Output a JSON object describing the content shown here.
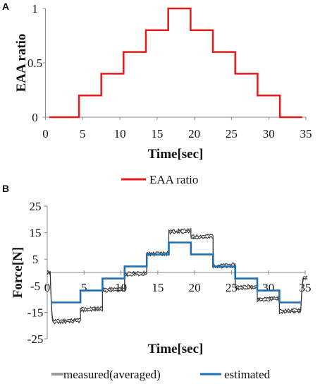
{
  "chart_data": [
    {
      "panel": "A",
      "type": "line",
      "step": true,
      "xlabel": "Time[sec]",
      "ylabel": "EAA ratio",
      "xlim": [
        0,
        35
      ],
      "ylim": [
        0,
        1
      ],
      "xticks": [
        "0",
        "5",
        "10",
        "15",
        "20",
        "25",
        "30",
        "35"
      ],
      "yticks": [
        "0",
        "0.5",
        "1"
      ],
      "grid": false,
      "legend_position": "bottom",
      "series": [
        {
          "name": "EAA ratio",
          "color": "#e41a1c",
          "x": [
            0.5,
            4.5,
            4.5,
            7.5,
            7.5,
            10.5,
            10.5,
            13.5,
            13.5,
            16.5,
            16.5,
            19.5,
            19.5,
            22.5,
            22.5,
            25.5,
            25.5,
            28.5,
            28.5,
            31.5,
            31.5,
            34.5
          ],
          "y": [
            0,
            0,
            0.2,
            0.2,
            0.4,
            0.4,
            0.6,
            0.6,
            0.8,
            0.8,
            1.0,
            1.0,
            0.8,
            0.8,
            0.6,
            0.6,
            0.4,
            0.4,
            0.2,
            0.2,
            0,
            0
          ]
        }
      ]
    },
    {
      "panel": "B",
      "type": "line",
      "xlabel": "Time[sec]",
      "ylabel": "Force[N]",
      "xlim": [
        0,
        35
      ],
      "ylim": [
        -25,
        25
      ],
      "xticks": [
        "0",
        "5",
        "10",
        "15",
        "20",
        "25",
        "30",
        "35"
      ],
      "yticks": [
        "-25",
        "-15",
        "-5",
        "5",
        "15",
        "25"
      ],
      "grid": false,
      "legend_position": "bottom",
      "series": [
        {
          "name": "measured(averaged)",
          "color": "#333333",
          "levels": [
            {
              "start": 0.0,
              "end": 0.4,
              "value": 0
            },
            {
              "start": 0.8,
              "end": 4.5,
              "value": -18.3
            },
            {
              "start": 4.5,
              "end": 7.5,
              "value": -13.8
            },
            {
              "start": 7.5,
              "end": 10.5,
              "value": -6.5
            },
            {
              "start": 10.5,
              "end": 13.5,
              "value": -0.5
            },
            {
              "start": 13.5,
              "end": 16.5,
              "value": 7.0
            },
            {
              "start": 16.5,
              "end": 19.5,
              "value": 15.5
            },
            {
              "start": 19.5,
              "end": 22.5,
              "value": 13.5
            },
            {
              "start": 22.5,
              "end": 25.5,
              "value": 2.5
            },
            {
              "start": 25.5,
              "end": 28.5,
              "value": -5.5
            },
            {
              "start": 28.5,
              "end": 31.5,
              "value": -10.0
            },
            {
              "start": 31.5,
              "end": 34.4,
              "value": -14.5
            },
            {
              "start": 34.8,
              "end": 35.3,
              "value": -2.0
            }
          ]
        },
        {
          "name": "estimated",
          "color": "#1f6fb5",
          "x": [
            0.5,
            4.5,
            4.5,
            7.5,
            7.5,
            10.5,
            10.5,
            13.5,
            13.5,
            16.5,
            16.5,
            19.5,
            19.5,
            22.5,
            22.5,
            25.5,
            25.5,
            28.5,
            28.5,
            31.5,
            31.5,
            34.5
          ],
          "y": [
            -11.3,
            -11.3,
            -6.8,
            -6.8,
            -2.3,
            -2.3,
            2.3,
            2.3,
            6.8,
            6.8,
            11.3,
            11.3,
            6.8,
            6.8,
            2.3,
            2.3,
            -2.3,
            -2.3,
            -6.8,
            -6.8,
            -11.3,
            -11.3
          ]
        }
      ]
    }
  ]
}
